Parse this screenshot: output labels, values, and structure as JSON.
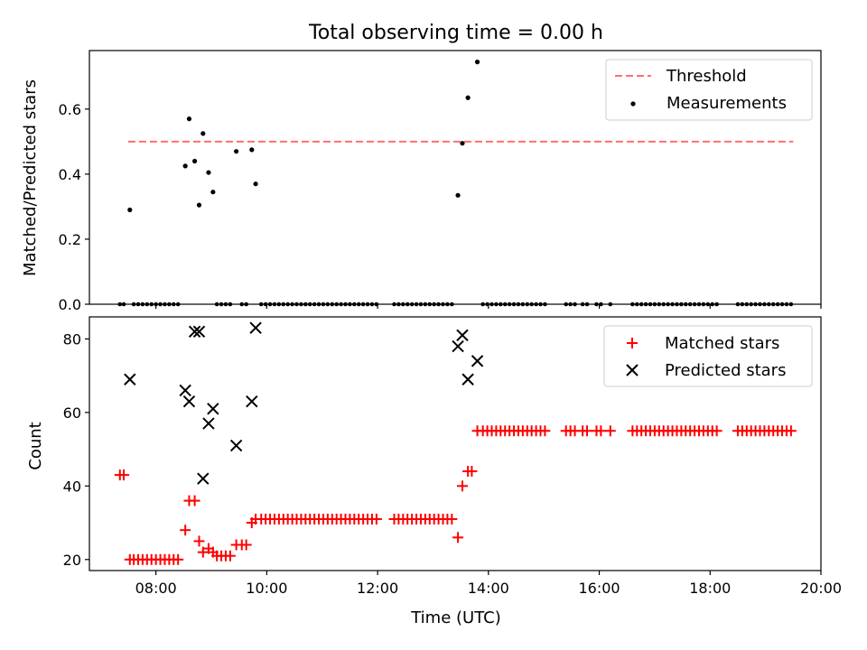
{
  "figure": {
    "title": "Total observing time = 0.00 h",
    "xlabel": "Time (UTC)",
    "x_ticks": [
      "08:00",
      "10:00",
      "12:00",
      "14:00",
      "16:00",
      "18:00",
      "20:00"
    ]
  },
  "chart_data": [
    {
      "type": "scatter",
      "title": "Total observing time = 0.00 h",
      "ylabel": "Matched/Predicted stars",
      "xlabel": "",
      "x_unit": "hours UTC",
      "xlim": [
        6.8,
        20.0
      ],
      "ylim": [
        0,
        0.78
      ],
      "y_ticks": [
        "0.0",
        "0.2",
        "0.4",
        "0.6"
      ],
      "legend_position": "top-right",
      "series": [
        {
          "name": "Threshold",
          "kind": "dashed-line",
          "color": "#ff6f6f",
          "x": [
            7.5,
            19.5
          ],
          "y": [
            0.5,
            0.5
          ]
        },
        {
          "name": "Measurements",
          "kind": "dot",
          "color": "#000000",
          "x": [
            7.53,
            8.53,
            8.6,
            8.7,
            8.78,
            8.85,
            8.95,
            9.03,
            9.45,
            9.73,
            9.8,
            13.45,
            13.53,
            13.63,
            13.8
          ],
          "y": [
            0.29,
            0.425,
            0.57,
            0.44,
            0.305,
            0.525,
            0.405,
            0.345,
            0.47,
            0.475,
            0.37,
            0.335,
            0.495,
            0.635,
            0.745
          ]
        },
        {
          "name": "",
          "kind": "dot",
          "color": "#000000",
          "x": [
            7.35,
            7.42,
            7.6,
            7.68,
            7.76,
            7.84,
            7.92,
            8.0,
            8.08,
            8.16,
            8.24,
            8.32,
            8.4,
            9.1,
            9.18,
            9.26,
            9.34,
            9.55,
            9.63,
            9.9,
            9.98,
            10.06,
            10.14,
            10.22,
            10.3,
            10.38,
            10.46,
            10.54,
            10.62,
            10.7,
            10.78,
            10.86,
            10.94,
            11.02,
            11.1,
            11.18,
            11.26,
            11.34,
            11.42,
            11.5,
            11.58,
            11.66,
            11.74,
            11.82,
            11.9,
            11.98,
            12.3,
            12.38,
            12.46,
            12.54,
            12.62,
            12.7,
            12.78,
            12.86,
            12.94,
            13.02,
            13.1,
            13.18,
            13.26,
            13.34,
            13.9,
            13.98,
            14.06,
            14.14,
            14.22,
            14.3,
            14.38,
            14.46,
            14.54,
            14.62,
            14.7,
            14.78,
            14.86,
            14.94,
            15.02,
            15.4,
            15.48,
            15.56,
            15.7,
            15.78,
            15.95,
            16.03,
            16.2,
            16.6,
            16.68,
            16.76,
            16.84,
            16.92,
            17.0,
            17.08,
            17.16,
            17.24,
            17.32,
            17.4,
            17.48,
            17.56,
            17.64,
            17.72,
            17.8,
            17.88,
            17.96,
            18.04,
            18.12,
            18.5,
            18.58,
            18.66,
            18.74,
            18.82,
            18.9,
            18.98,
            19.06,
            19.14,
            19.22,
            19.3,
            19.38,
            19.46
          ],
          "y_value": 0.0
        }
      ]
    },
    {
      "type": "scatter",
      "title": "",
      "ylabel": "Count",
      "xlabel": "Time (UTC)",
      "x_unit": "hours UTC",
      "xlim": [
        6.8,
        20.0
      ],
      "ylim": [
        17,
        86
      ],
      "y_ticks": [
        "20",
        "40",
        "60",
        "80"
      ],
      "legend_position": "top-right",
      "series": [
        {
          "name": "Matched stars",
          "kind": "plus",
          "color": "#ff0000",
          "x": [
            7.35,
            7.42,
            7.53,
            7.6,
            7.68,
            7.76,
            7.84,
            7.92,
            8.0,
            8.08,
            8.16,
            8.24,
            8.32,
            8.4,
            8.53,
            8.6,
            8.7,
            8.78,
            8.85,
            8.95,
            9.03,
            9.1,
            9.18,
            9.26,
            9.34,
            9.45,
            9.55,
            9.63,
            9.73,
            9.8,
            9.9,
            9.98,
            10.06,
            10.14,
            10.22,
            10.3,
            10.38,
            10.46,
            10.54,
            10.62,
            10.7,
            10.78,
            10.86,
            10.94,
            11.02,
            11.1,
            11.18,
            11.26,
            11.34,
            11.42,
            11.5,
            11.58,
            11.66,
            11.74,
            11.82,
            11.9,
            11.98,
            12.3,
            12.38,
            12.46,
            12.54,
            12.62,
            12.7,
            12.78,
            12.86,
            12.94,
            13.02,
            13.1,
            13.18,
            13.26,
            13.34,
            13.45,
            13.53,
            13.63,
            13.7,
            13.8,
            13.9,
            13.98,
            14.06,
            14.14,
            14.22,
            14.3,
            14.38,
            14.46,
            14.54,
            14.62,
            14.7,
            14.78,
            14.86,
            14.94,
            15.02,
            15.4,
            15.48,
            15.56,
            15.7,
            15.78,
            15.95,
            16.03,
            16.2,
            16.6,
            16.68,
            16.76,
            16.84,
            16.92,
            17.0,
            17.08,
            17.16,
            17.24,
            17.32,
            17.4,
            17.48,
            17.56,
            17.64,
            17.72,
            17.8,
            17.88,
            17.96,
            18.04,
            18.12,
            18.5,
            18.58,
            18.66,
            18.74,
            18.82,
            18.9,
            18.98,
            19.06,
            19.14,
            19.22,
            19.3,
            19.38,
            19.46
          ],
          "y": [
            43,
            43,
            20,
            20,
            20,
            20,
            20,
            20,
            20,
            20,
            20,
            20,
            20,
            20,
            28,
            36,
            36,
            25,
            22,
            23,
            22,
            21,
            21,
            21,
            21,
            24,
            24,
            24,
            30,
            31,
            31,
            31,
            31,
            31,
            31,
            31,
            31,
            31,
            31,
            31,
            31,
            31,
            31,
            31,
            31,
            31,
            31,
            31,
            31,
            31,
            31,
            31,
            31,
            31,
            31,
            31,
            31,
            31,
            31,
            31,
            31,
            31,
            31,
            31,
            31,
            31,
            31,
            31,
            31,
            31,
            31,
            26,
            40,
            44,
            44,
            55,
            55,
            55,
            55,
            55,
            55,
            55,
            55,
            55,
            55,
            55,
            55,
            55,
            55,
            55,
            55,
            55,
            55,
            55,
            55,
            55,
            55,
            55,
            55,
            55,
            55,
            55,
            55,
            55,
            55,
            55,
            55,
            55,
            55,
            55,
            55,
            55,
            55,
            55,
            55,
            55,
            55,
            55,
            55,
            55,
            55,
            55,
            55,
            55,
            55,
            55,
            55,
            55,
            55,
            55,
            55,
            55
          ]
        },
        {
          "name": "Predicted stars",
          "kind": "x",
          "color": "#000000",
          "x": [
            7.53,
            8.53,
            8.6,
            8.7,
            8.78,
            8.85,
            8.95,
            9.03,
            9.45,
            9.73,
            9.8,
            13.45,
            13.53,
            13.63,
            13.8
          ],
          "y": [
            69,
            66,
            63,
            82,
            82,
            42,
            57,
            61,
            51,
            63,
            83,
            78,
            81,
            69,
            74
          ]
        }
      ]
    }
  ]
}
